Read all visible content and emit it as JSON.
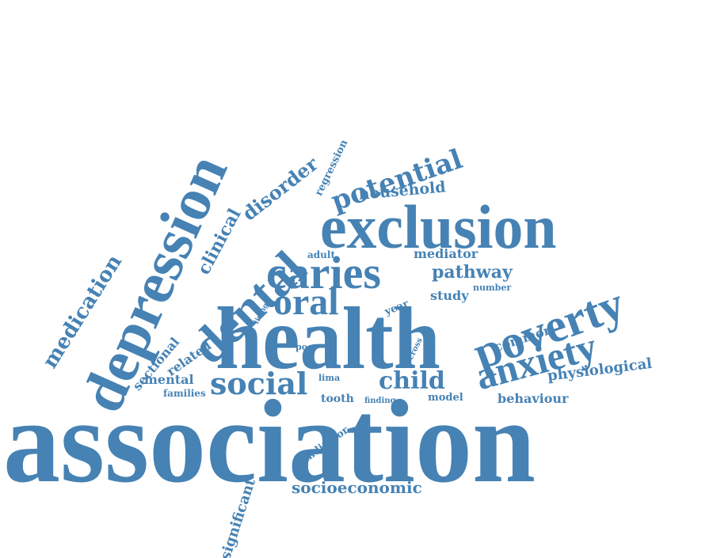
{
  "color": "#4682b4",
  "words": {
    "association": "association",
    "health": "health",
    "depression": "depression",
    "exclusion": "exclusion",
    "dental": "dental",
    "poverty": "poverty",
    "caries": "caries",
    "anxiety": "anxiety",
    "social": "social",
    "oral": "oral",
    "potential": "potential",
    "child": "child",
    "medication": "medication",
    "clinical": "clinical",
    "disorder": "disorder",
    "household": "household",
    "pathway": "pathway",
    "physiological": "physiological",
    "socioeconomic": "socioeconomic",
    "significant": "significant",
    "sectional": "sectional",
    "mental": "mental",
    "related": "related",
    "mediator": "mediator",
    "common": "common",
    "behaviour": "behaviour",
    "study": "study",
    "regression": "regression",
    "indicator": "indicator",
    "tooth": "tooth",
    "model": "model",
    "year": "year",
    "families": "families",
    "adult": "adult",
    "lima": "lima",
    "poor": "poor",
    "cross": "cross",
    "number": "number",
    "living": "living",
    "finding": "finding"
  }
}
